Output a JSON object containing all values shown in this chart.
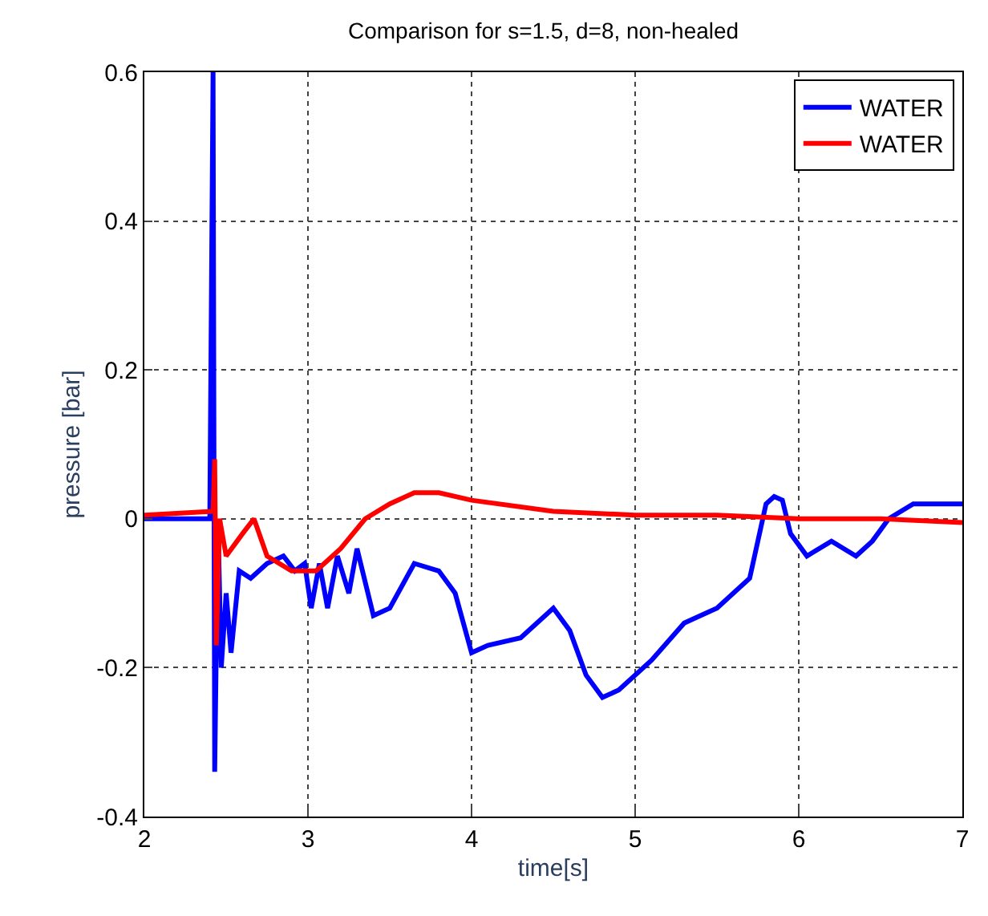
{
  "chart_data": {
    "type": "line",
    "title": "Comparison for s=1.5, d=8, non-healed",
    "xlabel": "time[s]",
    "ylabel": "pressure [bar]",
    "xlim": [
      2,
      7
    ],
    "xticks": [
      2,
      3,
      4,
      5,
      6,
      7
    ],
    "ylim": [
      -0.4,
      0.6
    ],
    "yticks": [
      -0.4,
      -0.2,
      0,
      0.2,
      0.4,
      0.6
    ],
    "grid": true,
    "legend": "top right",
    "line_style": "solid",
    "series": [
      {
        "name": "WATER",
        "color": "#0000ff",
        "x": [
          2,
          2.4,
          2.42,
          2.43,
          2.45,
          2.47,
          2.5,
          2.53,
          2.58,
          2.65,
          2.75,
          2.85,
          2.92,
          2.98,
          3.02,
          3.07,
          3.12,
          3.18,
          3.25,
          3.3,
          3.4,
          3.5,
          3.65,
          3.8,
          3.9,
          4.0,
          4.1,
          4.3,
          4.5,
          4.6,
          4.7,
          4.8,
          4.9,
          5.1,
          5.3,
          5.5,
          5.7,
          5.8,
          5.85,
          5.9,
          5.95,
          6.05,
          6.2,
          6.35,
          6.45,
          6.55,
          6.7,
          7
        ],
        "values": [
          0,
          0,
          0.6,
          -0.34,
          0.0,
          -0.2,
          -0.1,
          -0.18,
          -0.07,
          -0.08,
          -0.06,
          -0.05,
          -0.07,
          -0.06,
          -0.12,
          -0.06,
          -0.12,
          -0.05,
          -0.1,
          -0.04,
          -0.13,
          -0.12,
          -0.06,
          -0.07,
          -0.1,
          -0.18,
          -0.17,
          -0.16,
          -0.12,
          -0.15,
          -0.21,
          -0.24,
          -0.23,
          -0.19,
          -0.14,
          -0.12,
          -0.08,
          0.02,
          0.03,
          0.025,
          -0.02,
          -0.05,
          -0.03,
          -0.05,
          -0.03,
          0.0,
          0.02,
          0.02
        ]
      },
      {
        "name": "WATER",
        "color": "#ff0000",
        "x": [
          2,
          2.42,
          2.43,
          2.44,
          2.46,
          2.5,
          2.6,
          2.67,
          2.75,
          2.9,
          3.05,
          3.2,
          3.35,
          3.5,
          3.65,
          3.8,
          4,
          4.5,
          5,
          5.5,
          6,
          6.5,
          7
        ],
        "values": [
          0.005,
          0.01,
          0.08,
          -0.17,
          0.0,
          -0.05,
          -0.02,
          0.0,
          -0.05,
          -0.07,
          -0.07,
          -0.04,
          0.0,
          0.02,
          0.035,
          0.035,
          0.025,
          0.01,
          0.005,
          0.005,
          0.0,
          0.0,
          -0.005
        ]
      }
    ]
  }
}
